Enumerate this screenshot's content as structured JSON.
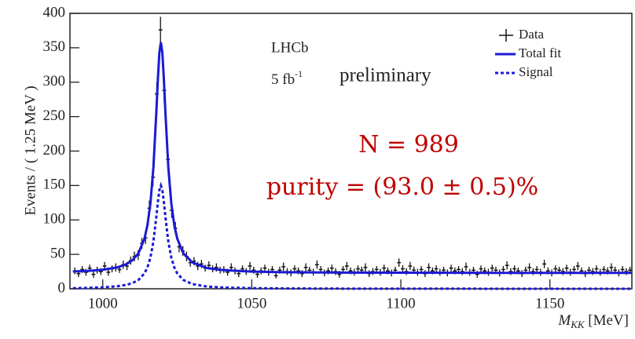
{
  "chart_data": {
    "type": "errorbar",
    "y_label": "Events / ( 1.25 MeV )",
    "x_label": [
      "M",
      "KK",
      " [MeV]"
    ],
    "annotations": [
      "LHCb",
      "5 fb",
      "-1",
      "preliminary",
      "N = 989",
      "purity = (93.0 ± 0.5)%"
    ],
    "xlim": [
      989,
      1177.5
    ],
    "xticks": [
      1000,
      1050,
      1100,
      1150
    ],
    "ylim": [
      0,
      400
    ],
    "yticks": [
      0,
      50,
      100,
      150,
      200,
      250,
      300,
      350,
      400
    ],
    "legend": "upper right",
    "series": [
      {
        "name": "Data",
        "type": "errorbar",
        "color": "#111111",
        "x": [
          990.625,
          991.875,
          993.125,
          994.375,
          995.625,
          996.875,
          998.125,
          999.375,
          1000.625,
          1001.875,
          1003.125,
          1004.375,
          1005.625,
          1006.875,
          1008.125,
          1009.375,
          1010.625,
          1011.875,
          1013.125,
          1014.375,
          1015.625,
          1016.875,
          1018.125,
          1019.375,
          1020.625,
          1021.875,
          1023.125,
          1024.375,
          1025.625,
          1026.875,
          1028.125,
          1029.375,
          1030.625,
          1031.875,
          1033.125,
          1034.375,
          1035.625,
          1036.875,
          1038.125,
          1039.375,
          1040.625,
          1041.875,
          1043.125,
          1044.375,
          1045.625,
          1046.875,
          1048.125,
          1049.375,
          1050.625,
          1051.875,
          1053.125,
          1054.375,
          1055.625,
          1056.875,
          1058.125,
          1059.375,
          1060.625,
          1061.875,
          1063.125,
          1064.375,
          1065.625,
          1066.875,
          1068.125,
          1069.375,
          1070.625,
          1071.875,
          1073.125,
          1074.375,
          1075.625,
          1076.875,
          1078.125,
          1079.375,
          1080.625,
          1081.875,
          1083.125,
          1084.375,
          1085.625,
          1086.875,
          1088.125,
          1089.375,
          1090.625,
          1091.875,
          1093.125,
          1094.375,
          1095.625,
          1096.875,
          1098.125,
          1099.375,
          1100.625,
          1101.875,
          1103.125,
          1104.375,
          1105.625,
          1106.875,
          1108.125,
          1109.375,
          1110.625,
          1111.875,
          1113.125,
          1114.375,
          1115.625,
          1116.875,
          1118.125,
          1119.375,
          1120.625,
          1121.875,
          1123.125,
          1124.375,
          1125.625,
          1126.875,
          1128.125,
          1129.375,
          1130.625,
          1131.875,
          1133.125,
          1134.375,
          1135.625,
          1136.875,
          1138.125,
          1139.375,
          1140.625,
          1141.875,
          1143.125,
          1144.375,
          1145.625,
          1146.875,
          1148.125,
          1149.375,
          1150.625,
          1151.875,
          1153.125,
          1154.375,
          1155.625,
          1156.875,
          1158.125,
          1159.375,
          1160.625,
          1161.875,
          1163.125,
          1164.375,
          1165.625,
          1166.875,
          1168.125,
          1169.375,
          1170.625,
          1171.875,
          1173.125,
          1174.375,
          1175.625,
          1176.875
        ],
        "values": [
          26,
          22,
          28,
          24,
          30,
          21,
          27,
          25,
          33,
          24,
          29,
          31,
          28,
          35,
          33,
          41,
          47,
          49,
          66,
          74,
          117,
          162,
          283,
          376,
          288,
          188,
          114,
          88,
          61,
          55,
          47,
          38,
          40,
          33,
          36,
          30,
          34,
          29,
          31,
          27,
          28,
          24,
          31,
          26,
          22,
          29,
          25,
          33,
          27,
          21,
          26,
          30,
          24,
          28,
          19,
          27,
          32,
          25,
          23,
          29,
          26,
          22,
          31,
          27,
          24,
          35,
          28,
          23,
          26,
          30,
          25,
          21,
          28,
          33,
          26,
          24,
          29,
          27,
          31,
          22,
          25,
          28,
          24,
          30,
          26,
          23,
          27,
          38,
          29,
          25,
          33,
          27,
          24,
          28,
          22,
          31,
          26,
          29,
          24,
          27,
          23,
          30,
          26,
          28,
          25,
          32,
          24,
          27,
          21,
          29,
          26,
          24,
          30,
          27,
          23,
          28,
          34,
          25,
          29,
          26,
          22,
          27,
          31,
          25,
          28,
          24,
          36,
          26,
          23,
          29,
          27,
          25,
          30,
          24,
          28,
          33,
          26,
          22,
          27,
          25,
          29,
          24,
          28,
          26,
          31,
          27,
          23,
          28,
          25,
          27
        ],
        "errors": [
          5,
          5,
          5,
          5,
          5,
          5,
          5,
          5,
          6,
          5,
          5,
          6,
          5,
          6,
          6,
          6,
          7,
          7,
          8,
          9,
          11,
          13,
          17,
          19,
          17,
          14,
          11,
          9,
          8,
          7,
          7,
          6,
          6,
          6,
          6,
          5,
          6,
          5,
          6,
          5,
          5,
          5,
          6,
          5,
          5,
          5,
          5,
          6,
          5,
          5,
          5,
          5,
          5,
          5,
          4,
          5,
          6,
          5,
          5,
          5,
          5,
          5,
          6,
          5,
          5,
          6,
          5,
          5,
          5,
          5,
          5,
          5,
          5,
          6,
          5,
          5,
          5,
          5,
          6,
          5,
          5,
          5,
          5,
          5,
          5,
          5,
          5,
          6,
          5,
          5,
          6,
          5,
          5,
          5,
          5,
          6,
          5,
          5,
          5,
          5,
          5,
          5,
          5,
          5,
          5,
          6,
          5,
          5,
          5,
          5,
          5,
          5,
          5,
          5,
          5,
          5,
          6,
          5,
          5,
          5,
          5,
          5,
          6,
          5,
          5,
          5,
          6,
          5,
          5,
          5,
          5,
          5,
          5,
          5,
          5,
          6,
          5,
          5,
          5,
          5,
          5,
          5,
          5,
          5,
          6,
          5,
          5,
          5,
          5,
          5
        ]
      },
      {
        "name": "Total fit",
        "type": "line",
        "style": "solid",
        "color": "#1a1ad6",
        "x": [
          990,
          995,
          1000,
          1005,
          1008,
          1010,
          1012,
          1014,
          1015,
          1016,
          1017,
          1018,
          1018.5,
          1019,
          1019.5,
          1020,
          1020.5,
          1021,
          1022,
          1023,
          1024,
          1025,
          1027,
          1030,
          1035,
          1040,
          1050,
          1060,
          1080,
          1100,
          1120,
          1140,
          1160,
          1177.5
        ],
        "values": [
          25.0,
          25.9,
          27.6,
          31.2,
          35.9,
          41.6,
          51.8,
          72.9,
          92.3,
          124.2,
          176.4,
          258.2,
          304.7,
          342.9,
          358,
          342.9,
          304.7,
          258.2,
          176.4,
          124.2,
          92.3,
          72.9,
          51.8,
          38.3,
          30.2,
          27.2,
          24.9,
          24.1,
          23.5,
          23.3,
          23.2,
          23.1,
          23.1,
          23.1
        ]
      },
      {
        "name": "Signal",
        "type": "line",
        "style": "dotted",
        "color": "#1a1ad6",
        "x": [
          990,
          995,
          1000,
          1005,
          1008,
          1010,
          1012,
          1014,
          1015,
          1016,
          1017,
          1018,
          1018.5,
          1019,
          1019.5,
          1020,
          1020.5,
          1021,
          1022,
          1023,
          1024,
          1025,
          1027,
          1030,
          1035,
          1040,
          1050,
          1060,
          1080,
          1100,
          1120,
          1140,
          1160,
          1177.5
        ],
        "values": [
          0.9,
          1.3,
          2.1,
          3.7,
          5.8,
          8.3,
          12.9,
          22.4,
          31.1,
          45.3,
          68.7,
          105.3,
          126.2,
          143.3,
          150,
          143.3,
          126.2,
          105.3,
          68.7,
          45.3,
          31.1,
          22.4,
          12.9,
          6.9,
          3.2,
          1.9,
          0.9,
          0.5,
          0.2,
          0.1,
          0.1,
          0,
          0,
          0
        ]
      }
    ]
  }
}
